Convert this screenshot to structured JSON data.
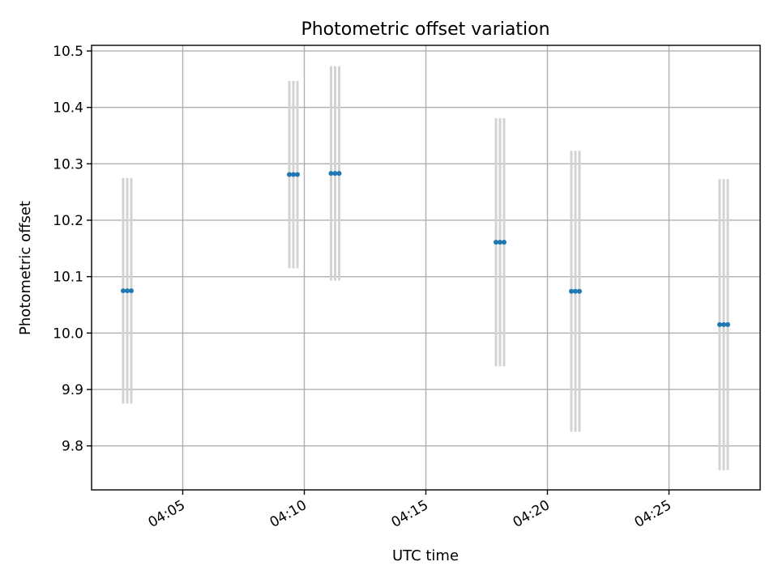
{
  "chart_data": {
    "type": "scatter",
    "title": "Photometric offset variation",
    "xlabel": "UTC time",
    "ylabel": "Photometric offset",
    "x_tick_labels": [
      "04:05",
      "04:10",
      "04:15",
      "04:20",
      "04:25"
    ],
    "y_tick_labels": [
      "9.8",
      "9.9",
      "10.0",
      "10.1",
      "10.2",
      "10.3",
      "10.4",
      "10.5"
    ],
    "xlim": [
      "04:01:15",
      "04:28:45"
    ],
    "ylim": [
      9.722,
      10.51
    ],
    "grid": true,
    "colors": {
      "points": "#1f77b4",
      "error_bars": "#d3d3d3",
      "grid": "#b0b0b0"
    },
    "points": [
      {
        "x": "04:02:33",
        "y": 10.075,
        "yerr": 0.2
      },
      {
        "x": "04:02:43",
        "y": 10.075,
        "yerr": 0.2
      },
      {
        "x": "04:02:53",
        "y": 10.075,
        "yerr": 0.2
      },
      {
        "x": "04:09:23",
        "y": 10.281,
        "yerr": 0.166
      },
      {
        "x": "04:09:33",
        "y": 10.281,
        "yerr": 0.166
      },
      {
        "x": "04:09:43",
        "y": 10.281,
        "yerr": 0.166
      },
      {
        "x": "04:11:06",
        "y": 10.283,
        "yerr": 0.19
      },
      {
        "x": "04:11:16",
        "y": 10.283,
        "yerr": 0.19
      },
      {
        "x": "04:11:26",
        "y": 10.283,
        "yerr": 0.19
      },
      {
        "x": "04:17:53",
        "y": 10.161,
        "yerr": 0.22
      },
      {
        "x": "04:18:03",
        "y": 10.161,
        "yerr": 0.22
      },
      {
        "x": "04:18:13",
        "y": 10.161,
        "yerr": 0.22
      },
      {
        "x": "04:20:59",
        "y": 10.074,
        "yerr": 0.249
      },
      {
        "x": "04:21:09",
        "y": 10.074,
        "yerr": 0.249
      },
      {
        "x": "04:21:19",
        "y": 10.074,
        "yerr": 0.249
      },
      {
        "x": "04:27:05",
        "y": 10.015,
        "yerr": 0.258
      },
      {
        "x": "04:27:15",
        "y": 10.015,
        "yerr": 0.258
      },
      {
        "x": "04:27:25",
        "y": 10.015,
        "yerr": 0.258
      }
    ]
  }
}
